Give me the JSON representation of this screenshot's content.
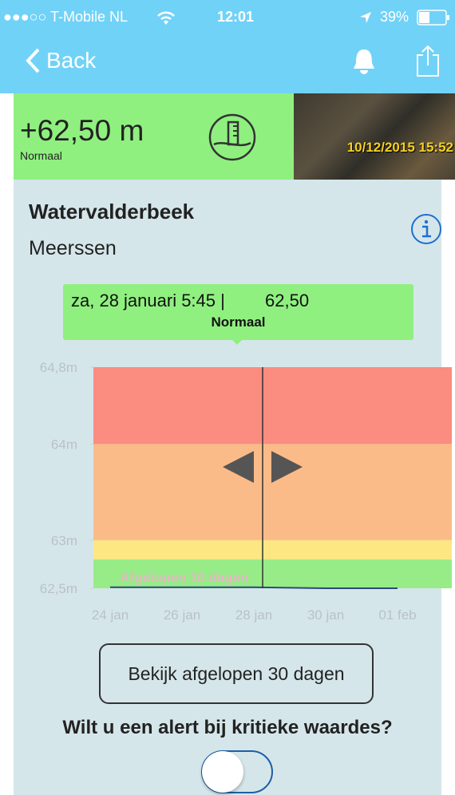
{
  "status_bar": {
    "carrier": "●●●○○ T-Mobile NL",
    "time": "12:01",
    "battery": "39%"
  },
  "nav": {
    "back": "Back"
  },
  "summary": {
    "level": "+62,50 m",
    "status": "Normaal",
    "photo_timestamp": "10/12/2015 15:52"
  },
  "station": {
    "name": "Watervalderbeek",
    "place": "Meerssen"
  },
  "tooltip": {
    "date": "za, 28 januari 5:45 |",
    "value": "62,50",
    "status": "Normaal"
  },
  "chart": {
    "categories": [
      "24 jan",
      "26 jan",
      "28 jan",
      "30 jan",
      "01 feb"
    ],
    "ylim": [
      62.5,
      64.8
    ],
    "yticks": [
      {
        "value": 64.8,
        "label": "64,8m"
      },
      {
        "value": 64,
        "label": "64m"
      },
      {
        "value": 63,
        "label": "63m"
      },
      {
        "value": 62.5,
        "label": "62,5m"
      }
    ],
    "zones": [
      {
        "from": 64,
        "to": 64.8,
        "color": "#fb8c80"
      },
      {
        "from": 63,
        "to": 64,
        "color": "#fbbb88"
      },
      {
        "from": 62.8,
        "to": 63,
        "color": "#fde783"
      },
      {
        "from": 62.5,
        "to": 62.8,
        "color": "#97ec88"
      }
    ],
    "series": [
      {
        "color": "#2b4b78",
        "values": [
          62.51,
          62.51,
          62.51,
          62.5,
          62.5
        ]
      }
    ],
    "period_label": "Afgelopen 10 dagen"
  },
  "button": "Bekijk afgelopen 30 dagen",
  "alert": {
    "question": "Wilt u een alert bij kritieke waardes?"
  }
}
